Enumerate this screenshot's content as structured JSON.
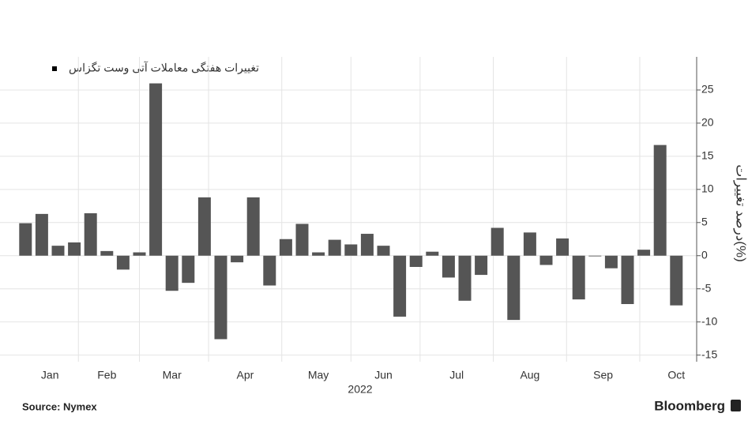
{
  "chart_data": {
    "type": "bar",
    "legend": "تغییرات هفتگی معاملات آتی وست تگزاس",
    "y_label": "درصد تغییرات(%)",
    "x_label": "2022",
    "source": "Source: Nymex",
    "brand": "Bloomberg",
    "color": "#555555",
    "grid": true,
    "categories": [
      null,
      null,
      null,
      null,
      null,
      null,
      null,
      null,
      null,
      null,
      null,
      null,
      null,
      null,
      null,
      null,
      null,
      null,
      null,
      null,
      null,
      null,
      null,
      null,
      null,
      null,
      null,
      null,
      null,
      null,
      null,
      null,
      null,
      null,
      null,
      null,
      null,
      null,
      null,
      null,
      null
    ],
    "values": [
      4.9,
      6.3,
      1.5,
      2.0,
      6.4,
      0.7,
      -2.1,
      0.5,
      26,
      -5.3,
      -4.1,
      8.8,
      -12.6,
      -1.0,
      8.8,
      -4.5,
      2.5,
      4.8,
      0.5,
      2.4,
      1.7,
      3.3,
      1.5,
      -9.2,
      -1.7,
      0.6,
      -3.3,
      -6.8,
      -2.9,
      4.2,
      -9.7,
      3.5,
      -1.4,
      2.6,
      -6.6,
      -0.1,
      -1.9,
      -7.3,
      0.9,
      16.7,
      -7.5
    ],
    "xticks": [
      {
        "value": 1.5,
        "label": "Jan"
      },
      {
        "value": 5,
        "label": "Feb"
      },
      {
        "value": 9,
        "label": "Mar"
      },
      {
        "value": 13.5,
        "label": "Apr"
      },
      {
        "value": 18,
        "label": "May"
      },
      {
        "value": 22,
        "label": "Jun"
      },
      {
        "value": 26.5,
        "label": "Jul"
      },
      {
        "value": 31,
        "label": "Aug"
      },
      {
        "value": 35.5,
        "label": "Sep"
      },
      {
        "value": 40,
        "label": "Oct"
      }
    ],
    "ylim": [
      -16,
      30
    ],
    "yticks": [
      -15,
      -10,
      -5,
      0,
      5,
      10,
      15,
      20,
      25
    ]
  }
}
